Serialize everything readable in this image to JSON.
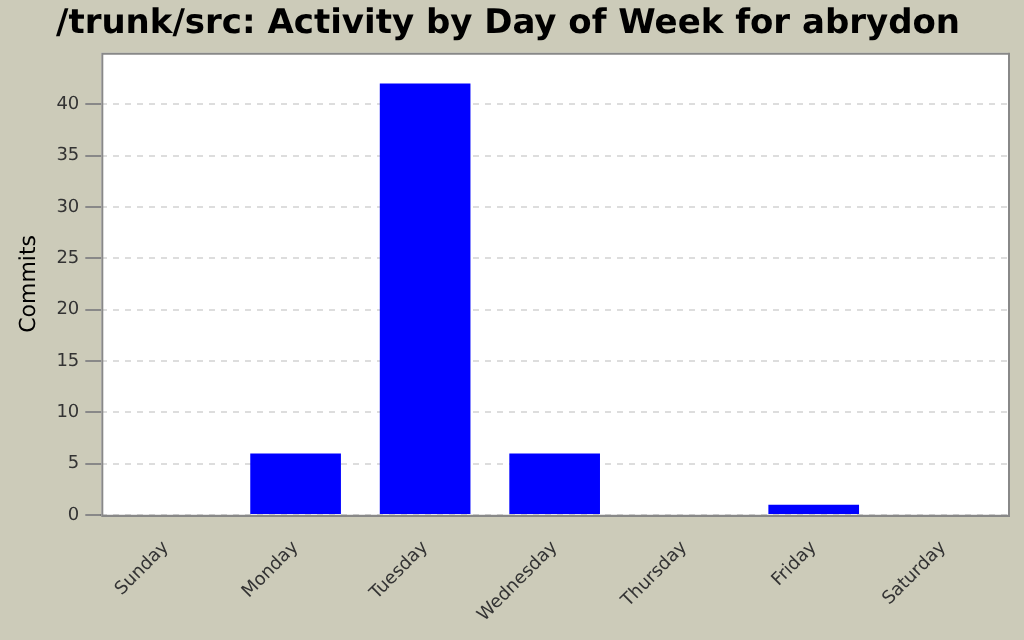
{
  "chart_data": {
    "type": "bar",
    "title": "/trunk/src: Activity by Day of Week for abrydon",
    "ylabel": "Commits",
    "categories": [
      "Sunday",
      "Monday",
      "Tuesday",
      "Wednesday",
      "Thursday",
      "Friday",
      "Saturday"
    ],
    "values": [
      0,
      6,
      42,
      6,
      0,
      1,
      0
    ],
    "color": "#0000ff",
    "ylim": [
      0,
      45
    ],
    "yticks": [
      0,
      5,
      10,
      15,
      20,
      25,
      30,
      35,
      40
    ],
    "grid": "y",
    "legend": false
  }
}
